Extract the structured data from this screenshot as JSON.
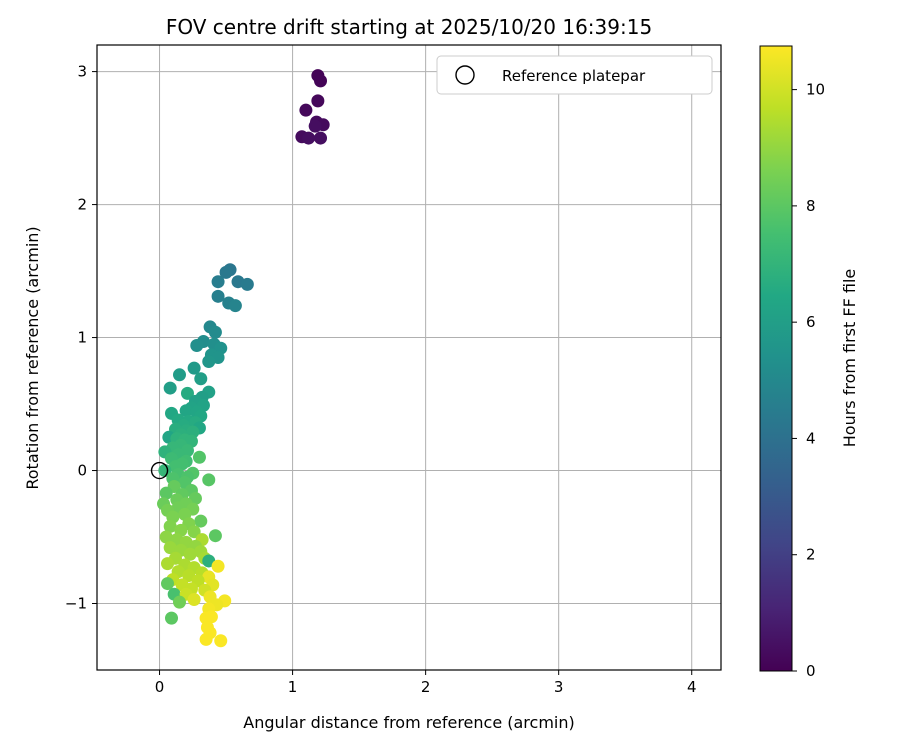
{
  "chart_data": {
    "type": "scatter",
    "title": "FOV centre drift starting at 2025/10/20 16:39:15",
    "xlabel": "Angular distance from reference (arcmin)",
    "ylabel": "Rotation from reference (arcmin)",
    "xlim": [
      -0.47,
      4.22
    ],
    "ylim": [
      -1.5,
      3.2
    ],
    "xticks": [
      0,
      1,
      2,
      3,
      4
    ],
    "yticks": [
      -1,
      0,
      1,
      2,
      3
    ],
    "grid": true,
    "legend": {
      "position": "top-right",
      "label": "Reference platepar"
    },
    "reference_point": {
      "x": 0,
      "y": 0
    },
    "colorbar": {
      "label": "Hours from first FF file",
      "range": [
        0,
        10.75
      ],
      "ticks": [
        0,
        2,
        4,
        6,
        8,
        10
      ],
      "colormap": "viridis"
    },
    "points": [
      {
        "x": 1.19,
        "y": 2.97,
        "c": 0.1
      },
      {
        "x": 1.21,
        "y": 2.93,
        "c": 0.1
      },
      {
        "x": 1.1,
        "y": 2.71,
        "c": 0.2
      },
      {
        "x": 1.19,
        "y": 2.78,
        "c": 0.2
      },
      {
        "x": 1.18,
        "y": 2.62,
        "c": 0.3
      },
      {
        "x": 1.23,
        "y": 2.6,
        "c": 0.3
      },
      {
        "x": 1.07,
        "y": 2.51,
        "c": 0.3
      },
      {
        "x": 1.12,
        "y": 2.5,
        "c": 0.4
      },
      {
        "x": 1.21,
        "y": 2.5,
        "c": 0.4
      },
      {
        "x": 1.17,
        "y": 2.59,
        "c": 0.4
      },
      {
        "x": 0.53,
        "y": 1.51,
        "c": 4.2
      },
      {
        "x": 0.5,
        "y": 1.49,
        "c": 4.3
      },
      {
        "x": 0.59,
        "y": 1.42,
        "c": 4.3
      },
      {
        "x": 0.66,
        "y": 1.4,
        "c": 4.4
      },
      {
        "x": 0.44,
        "y": 1.42,
        "c": 4.5
      },
      {
        "x": 0.44,
        "y": 1.31,
        "c": 4.6
      },
      {
        "x": 0.52,
        "y": 1.26,
        "c": 4.7
      },
      {
        "x": 0.57,
        "y": 1.24,
        "c": 4.8
      },
      {
        "x": 0.38,
        "y": 1.08,
        "c": 5.0
      },
      {
        "x": 0.42,
        "y": 1.04,
        "c": 5.1
      },
      {
        "x": 0.33,
        "y": 0.97,
        "c": 5.2
      },
      {
        "x": 0.28,
        "y": 0.94,
        "c": 5.3
      },
      {
        "x": 0.41,
        "y": 0.95,
        "c": 5.3
      },
      {
        "x": 0.46,
        "y": 0.92,
        "c": 5.4
      },
      {
        "x": 0.39,
        "y": 0.87,
        "c": 5.5
      },
      {
        "x": 0.44,
        "y": 0.85,
        "c": 5.5
      },
      {
        "x": 0.37,
        "y": 0.82,
        "c": 5.6
      },
      {
        "x": 0.26,
        "y": 0.77,
        "c": 5.8
      },
      {
        "x": 0.15,
        "y": 0.72,
        "c": 5.9
      },
      {
        "x": 0.31,
        "y": 0.69,
        "c": 6.0
      },
      {
        "x": 0.08,
        "y": 0.62,
        "c": 6.0
      },
      {
        "x": 0.37,
        "y": 0.59,
        "c": 6.1
      },
      {
        "x": 0.21,
        "y": 0.58,
        "c": 6.6
      },
      {
        "x": 0.32,
        "y": 0.55,
        "c": 6.0
      },
      {
        "x": 0.27,
        "y": 0.52,
        "c": 6.1
      },
      {
        "x": 0.33,
        "y": 0.49,
        "c": 6.2
      },
      {
        "x": 0.24,
        "y": 0.47,
        "c": 6.2
      },
      {
        "x": 0.2,
        "y": 0.45,
        "c": 6.3
      },
      {
        "x": 0.28,
        "y": 0.44,
        "c": 6.3
      },
      {
        "x": 0.09,
        "y": 0.43,
        "c": 6.4
      },
      {
        "x": 0.31,
        "y": 0.41,
        "c": 6.4
      },
      {
        "x": 0.14,
        "y": 0.38,
        "c": 6.5
      },
      {
        "x": 0.22,
        "y": 0.37,
        "c": 6.5
      },
      {
        "x": 0.27,
        "y": 0.36,
        "c": 6.6
      },
      {
        "x": 0.18,
        "y": 0.34,
        "c": 6.6
      },
      {
        "x": 0.3,
        "y": 0.32,
        "c": 6.4
      },
      {
        "x": 0.12,
        "y": 0.31,
        "c": 6.7
      },
      {
        "x": 0.2,
        "y": 0.3,
        "c": 6.7
      },
      {
        "x": 0.25,
        "y": 0.29,
        "c": 6.8
      },
      {
        "x": 0.16,
        "y": 0.27,
        "c": 6.8
      },
      {
        "x": 0.07,
        "y": 0.25,
        "c": 6.3
      },
      {
        "x": 0.13,
        "y": 0.24,
        "c": 6.9
      },
      {
        "x": 0.19,
        "y": 0.23,
        "c": 7.0
      },
      {
        "x": 0.24,
        "y": 0.22,
        "c": 7.0
      },
      {
        "x": 0.16,
        "y": 0.19,
        "c": 7.1
      },
      {
        "x": 0.1,
        "y": 0.17,
        "c": 7.1
      },
      {
        "x": 0.21,
        "y": 0.15,
        "c": 7.2
      },
      {
        "x": 0.04,
        "y": 0.14,
        "c": 6.9
      },
      {
        "x": 0.14,
        "y": 0.12,
        "c": 7.2
      },
      {
        "x": 0.3,
        "y": 0.1,
        "c": 7.8
      },
      {
        "x": 0.09,
        "y": 0.09,
        "c": 7.3
      },
      {
        "x": 0.2,
        "y": 0.07,
        "c": 7.4
      },
      {
        "x": 0.17,
        "y": 0.05,
        "c": 7.5
      },
      {
        "x": 0.12,
        "y": 0.03,
        "c": 7.5
      },
      {
        "x": 0.04,
        "y": 0.0,
        "c": 7.1
      },
      {
        "x": 0.25,
        "y": -0.02,
        "c": 7.8
      },
      {
        "x": 0.14,
        "y": -0.03,
        "c": 7.6
      },
      {
        "x": 0.21,
        "y": -0.05,
        "c": 7.7
      },
      {
        "x": 0.37,
        "y": -0.07,
        "c": 7.9
      },
      {
        "x": 0.1,
        "y": -0.06,
        "c": 7.7
      },
      {
        "x": 0.19,
        "y": -0.09,
        "c": 7.8
      },
      {
        "x": 0.11,
        "y": -0.12,
        "c": 8.2
      },
      {
        "x": 0.24,
        "y": -0.15,
        "c": 8.0
      },
      {
        "x": 0.05,
        "y": -0.17,
        "c": 8.0
      },
      {
        "x": 0.17,
        "y": -0.18,
        "c": 8.1
      },
      {
        "x": 0.27,
        "y": -0.21,
        "c": 8.2
      },
      {
        "x": 0.13,
        "y": -0.22,
        "c": 8.3
      },
      {
        "x": 0.03,
        "y": -0.25,
        "c": 8.3
      },
      {
        "x": 0.2,
        "y": -0.25,
        "c": 8.4
      },
      {
        "x": 0.14,
        "y": -0.28,
        "c": 8.4
      },
      {
        "x": 0.25,
        "y": -0.29,
        "c": 8.5
      },
      {
        "x": 0.06,
        "y": -0.3,
        "c": 8.5
      },
      {
        "x": 0.19,
        "y": -0.33,
        "c": 8.6
      },
      {
        "x": 0.31,
        "y": -0.38,
        "c": 8.2
      },
      {
        "x": 0.1,
        "y": -0.35,
        "c": 8.6
      },
      {
        "x": 0.22,
        "y": -0.4,
        "c": 8.7
      },
      {
        "x": 0.08,
        "y": -0.42,
        "c": 8.7
      },
      {
        "x": 0.16,
        "y": -0.45,
        "c": 8.8
      },
      {
        "x": 0.26,
        "y": -0.46,
        "c": 8.8
      },
      {
        "x": 0.42,
        "y": -0.49,
        "c": 8.0
      },
      {
        "x": 0.05,
        "y": -0.5,
        "c": 8.9
      },
      {
        "x": 0.13,
        "y": -0.52,
        "c": 8.9
      },
      {
        "x": 0.32,
        "y": -0.52,
        "c": 9.4
      },
      {
        "x": 0.2,
        "y": -0.54,
        "c": 9.0
      },
      {
        "x": 0.27,
        "y": -0.57,
        "c": 9.0
      },
      {
        "x": 0.08,
        "y": -0.58,
        "c": 9.1
      },
      {
        "x": 0.16,
        "y": -0.6,
        "c": 9.1
      },
      {
        "x": 0.31,
        "y": -0.61,
        "c": 9.2
      },
      {
        "x": 0.23,
        "y": -0.63,
        "c": 9.2
      },
      {
        "x": 0.34,
        "y": -0.66,
        "c": 9.3
      },
      {
        "x": 0.12,
        "y": -0.66,
        "c": 9.3
      },
      {
        "x": 0.37,
        "y": -0.68,
        "c": 6.8
      },
      {
        "x": 0.06,
        "y": -0.7,
        "c": 9.4
      },
      {
        "x": 0.19,
        "y": -0.71,
        "c": 9.4
      },
      {
        "x": 0.26,
        "y": -0.73,
        "c": 9.5
      },
      {
        "x": 0.44,
        "y": -0.72,
        "c": 10.6
      },
      {
        "x": 0.14,
        "y": -0.76,
        "c": 9.5
      },
      {
        "x": 0.32,
        "y": -0.77,
        "c": 9.6
      },
      {
        "x": 0.22,
        "y": -0.79,
        "c": 9.6
      },
      {
        "x": 0.37,
        "y": -0.8,
        "c": 10.4
      },
      {
        "x": 0.1,
        "y": -0.82,
        "c": 9.7
      },
      {
        "x": 0.29,
        "y": -0.83,
        "c": 9.7
      },
      {
        "x": 0.06,
        "y": -0.85,
        "c": 8.1
      },
      {
        "x": 0.17,
        "y": -0.86,
        "c": 9.8
      },
      {
        "x": 0.4,
        "y": -0.86,
        "c": 10.3
      },
      {
        "x": 0.24,
        "y": -0.89,
        "c": 9.8
      },
      {
        "x": 0.34,
        "y": -0.9,
        "c": 10.0
      },
      {
        "x": 0.11,
        "y": -0.93,
        "c": 7.6
      },
      {
        "x": 0.2,
        "y": -0.93,
        "c": 9.9
      },
      {
        "x": 0.38,
        "y": -0.95,
        "c": 10.5
      },
      {
        "x": 0.26,
        "y": -0.97,
        "c": 10.2
      },
      {
        "x": 0.49,
        "y": -0.98,
        "c": 10.6
      },
      {
        "x": 0.15,
        "y": -0.99,
        "c": 8.4
      },
      {
        "x": 0.43,
        "y": -1.01,
        "c": 10.5
      },
      {
        "x": 0.37,
        "y": -1.04,
        "c": 10.6
      },
      {
        "x": 0.09,
        "y": -1.11,
        "c": 8.0
      },
      {
        "x": 0.35,
        "y": -1.11,
        "c": 10.7
      },
      {
        "x": 0.39,
        "y": -1.1,
        "c": 10.7
      },
      {
        "x": 0.36,
        "y": -1.18,
        "c": 10.7
      },
      {
        "x": 0.38,
        "y": -1.22,
        "c": 10.7
      },
      {
        "x": 0.35,
        "y": -1.27,
        "c": 10.7
      },
      {
        "x": 0.46,
        "y": -1.28,
        "c": 10.7
      }
    ]
  }
}
